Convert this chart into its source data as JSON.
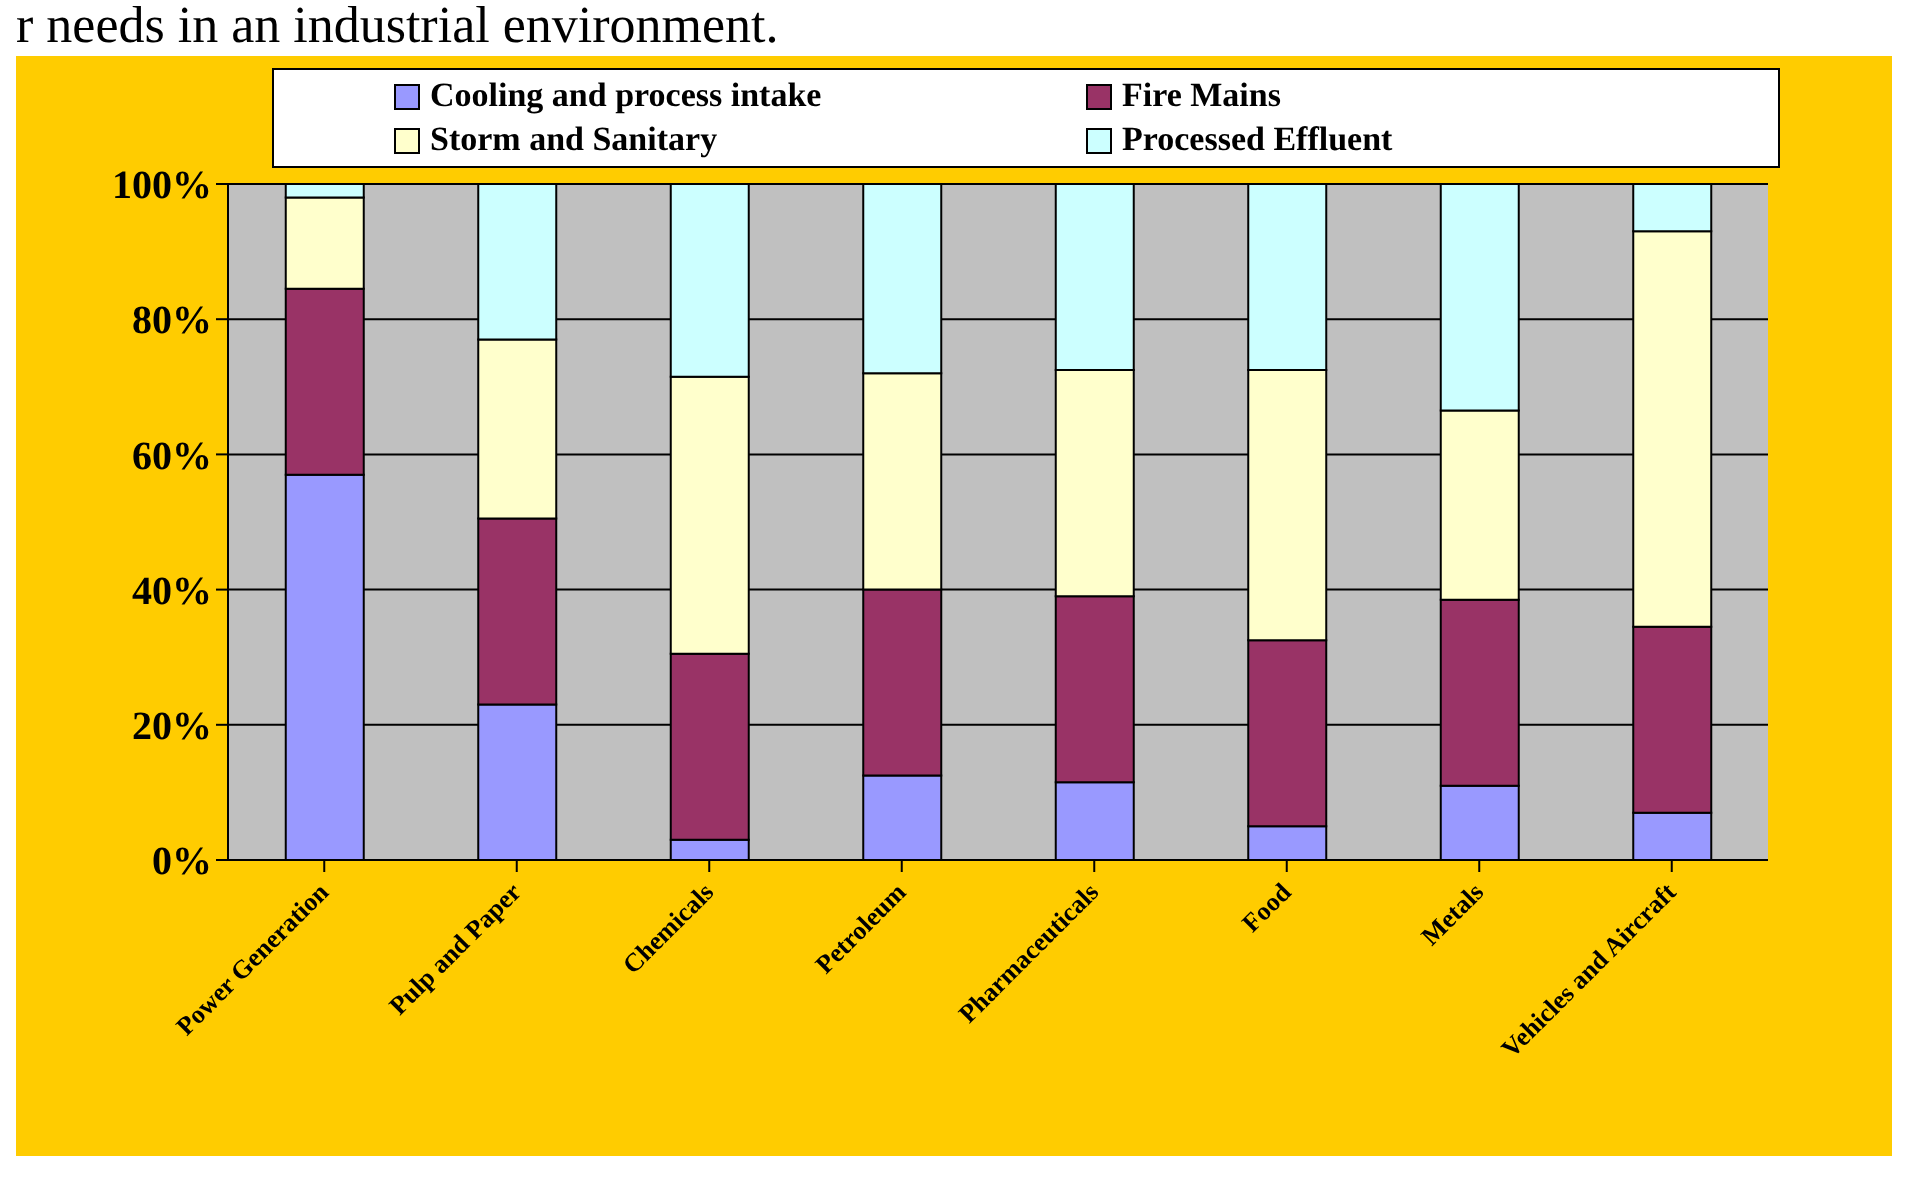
{
  "chart_data": {
    "type": "bar",
    "title": "r needs in an industrial environment.",
    "stacked": true,
    "categories": [
      "Power Generation",
      "Pulp and Paper",
      "Chemicals",
      "Petroleum",
      "Pharmaceuticals",
      "Food",
      "Metals",
      "Vehicles and Aircraft"
    ],
    "series": [
      {
        "name": "Cooling and process intake",
        "color": "#9999ff",
        "values": [
          57,
          23,
          3,
          12.5,
          11.5,
          5,
          11,
          7
        ]
      },
      {
        "name": "Fire Mains",
        "color": "#993366",
        "values": [
          27.5,
          27.5,
          27.5,
          27.5,
          27.5,
          27.5,
          27.5,
          27.5
        ]
      },
      {
        "name": "Storm and Sanitary",
        "color": "#ffffcc",
        "values": [
          13.5,
          26.5,
          41,
          32,
          33.5,
          40,
          28,
          58.5
        ]
      },
      {
        "name": "Processed Effluent",
        "color": "#ccffff",
        "values": [
          2,
          23,
          28.5,
          28,
          27.5,
          27.5,
          33.5,
          7
        ]
      }
    ],
    "ylim": [
      0,
      100
    ],
    "yticks": [
      {
        "value": 0,
        "label": "0%"
      },
      {
        "value": 20,
        "label": "20%"
      },
      {
        "value": 40,
        "label": "40%"
      },
      {
        "value": 60,
        "label": "60%"
      },
      {
        "value": 80,
        "label": "80%"
      },
      {
        "value": 100,
        "label": "100%"
      }
    ],
    "grid": "y",
    "legend": "top"
  }
}
